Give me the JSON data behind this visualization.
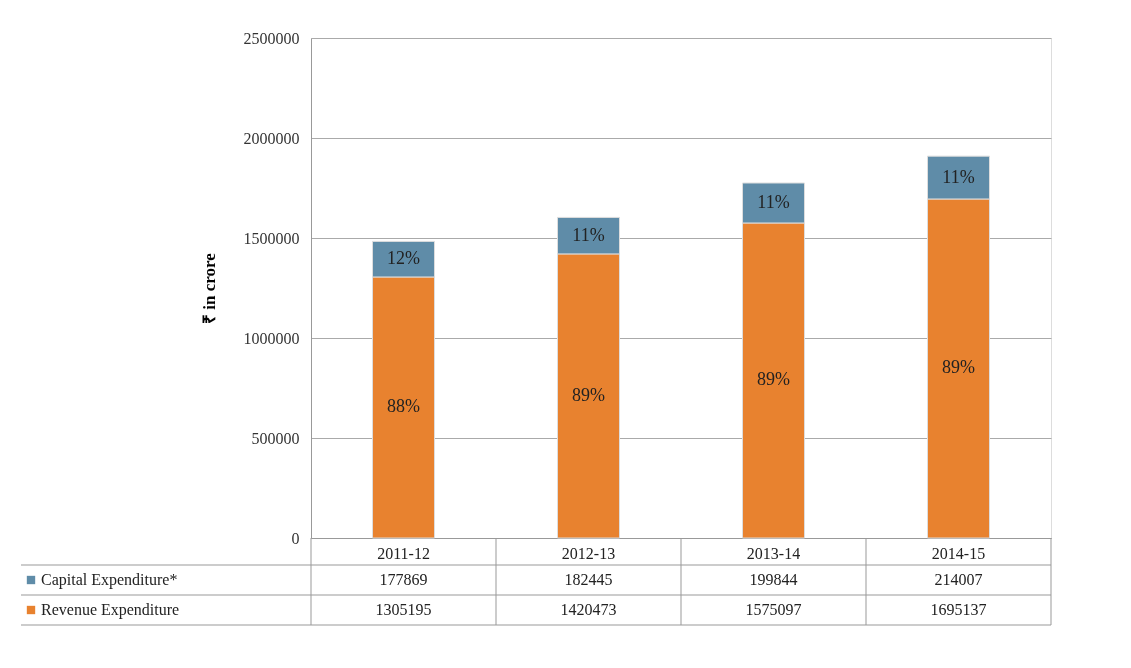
{
  "chart_data": {
    "type": "bar",
    "stacked": true,
    "ylabel": "₹ in crore",
    "categories": [
      "2011-12",
      "2012-13",
      "2013-14",
      "2014-15"
    ],
    "series": [
      {
        "name": "Revenue Expenditure",
        "color": "#e8822f",
        "values": [
          1305195,
          1420473,
          1575097,
          1695137
        ]
      },
      {
        "name": "Capital Expenditure*",
        "color": "#5f8ca8",
        "values": [
          177869,
          182445,
          199844,
          214007
        ]
      }
    ],
    "annotations": [
      "88%",
      "89%",
      "89%",
      "89%",
      "12%",
      "11%",
      "11%",
      "11%"
    ],
    "data_labels": true,
    "ylim": [
      0,
      2500000
    ],
    "yticks": [
      0,
      500000,
      1000000,
      1500000,
      2000000,
      2500000
    ],
    "grid": "y",
    "legend": "bottom"
  }
}
